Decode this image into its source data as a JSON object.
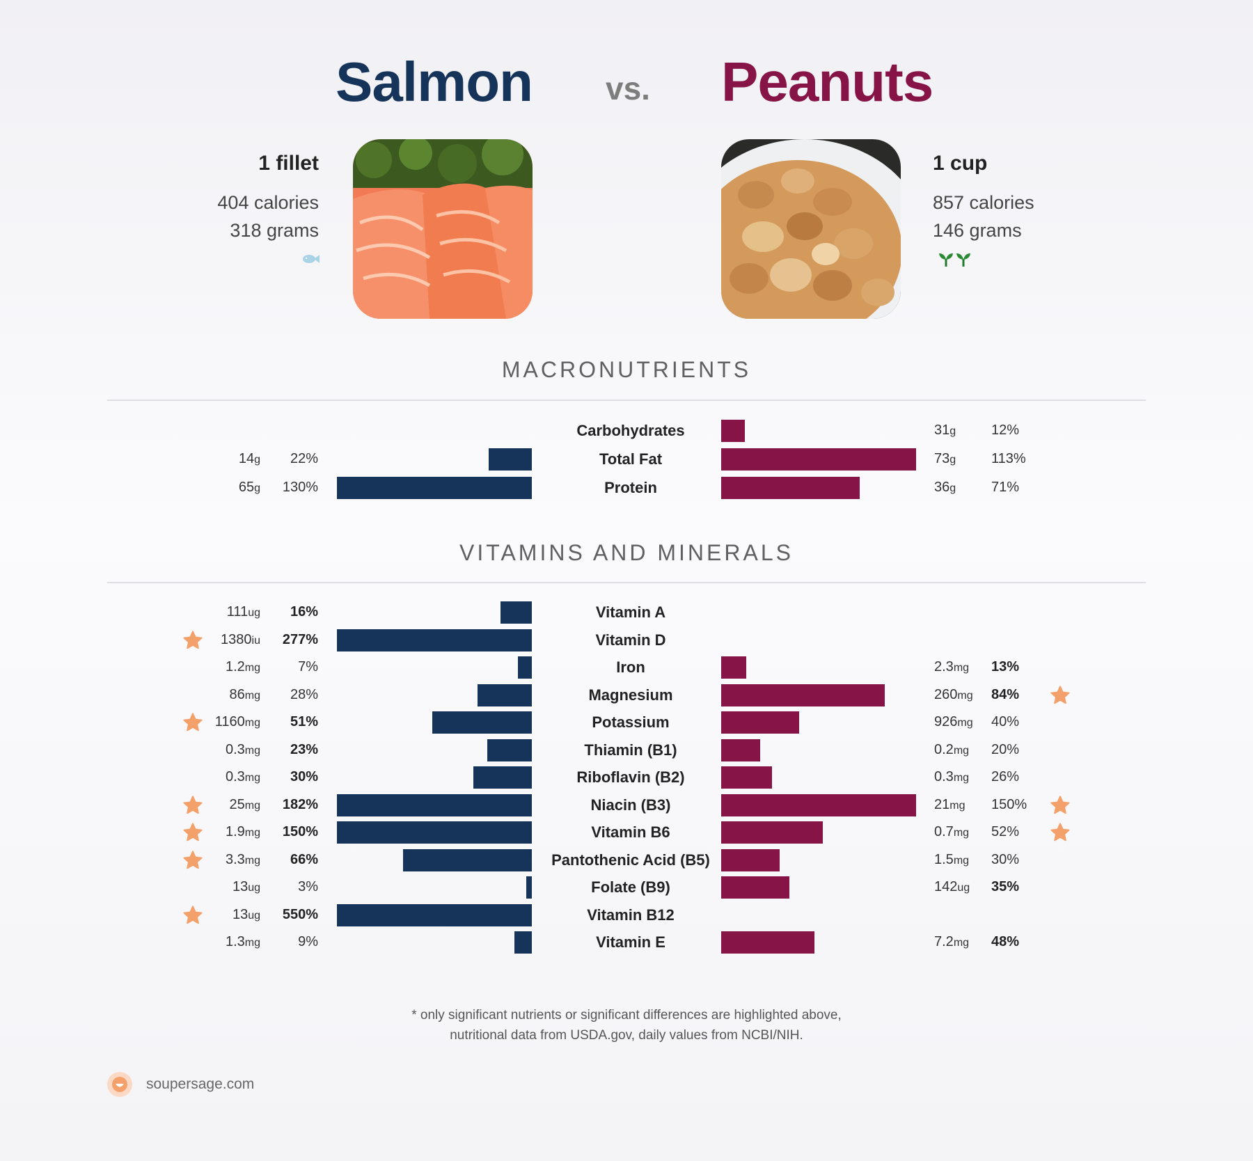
{
  "header": {
    "left_title": "Salmon",
    "vs": "vs.",
    "right_title": "Peanuts"
  },
  "left_food": {
    "serving": "1 fillet",
    "calories": "404 calories",
    "grams": "318 grams",
    "icon": "fish-icon"
  },
  "right_food": {
    "serving": "1 cup",
    "calories": "857 calories",
    "grams": "146 grams",
    "icon": "sprout-icon"
  },
  "sections": {
    "macros": "MACRONUTRIENTS",
    "vitamins": "VITAMINS AND MINERALS"
  },
  "colors": {
    "salmon": "#16345a",
    "peanuts": "#861446",
    "star": "#f4a06a"
  },
  "chart_data": [
    {
      "type": "bar",
      "title": "MACRONUTRIENTS",
      "series_colors": [
        "#16345a",
        "#861446"
      ],
      "rows": [
        {
          "name": "Carbohydrates",
          "left": null,
          "right": {
            "amount": "31",
            "unit": "g",
            "pct": 12,
            "bold": false,
            "star": false
          }
        },
        {
          "name": "Total Fat",
          "left": {
            "amount": "14",
            "unit": "g",
            "pct": 22,
            "bold": false,
            "star": false
          },
          "right": {
            "amount": "73",
            "unit": "g",
            "pct": 113,
            "bold": false,
            "star": false
          }
        },
        {
          "name": "Protein",
          "left": {
            "amount": "65",
            "unit": "g",
            "pct": 130,
            "bold": false,
            "star": false
          },
          "right": {
            "amount": "36",
            "unit": "g",
            "pct": 71,
            "bold": false,
            "star": false
          }
        }
      ]
    },
    {
      "type": "bar",
      "title": "VITAMINS AND MINERALS",
      "series_colors": [
        "#16345a",
        "#861446"
      ],
      "rows": [
        {
          "name": "Vitamin A",
          "left": {
            "amount": "111",
            "unit": "ug",
            "pct": 16,
            "bold": true,
            "star": false
          },
          "right": null
        },
        {
          "name": "Vitamin D",
          "left": {
            "amount": "1380",
            "unit": "iu",
            "pct": 277,
            "bold": true,
            "star": true
          },
          "right": null
        },
        {
          "name": "Iron",
          "left": {
            "amount": "1.2",
            "unit": "mg",
            "pct": 7,
            "bold": false,
            "star": false
          },
          "right": {
            "amount": "2.3",
            "unit": "mg",
            "pct": 13,
            "bold": true,
            "star": false
          }
        },
        {
          "name": "Magnesium",
          "left": {
            "amount": "86",
            "unit": "mg",
            "pct": 28,
            "bold": false,
            "star": false
          },
          "right": {
            "amount": "260",
            "unit": "mg",
            "pct": 84,
            "bold": true,
            "star": true
          }
        },
        {
          "name": "Potassium",
          "left": {
            "amount": "1160",
            "unit": "mg",
            "pct": 51,
            "bold": true,
            "star": true
          },
          "right": {
            "amount": "926",
            "unit": "mg",
            "pct": 40,
            "bold": false,
            "star": false
          }
        },
        {
          "name": "Thiamin (B1)",
          "left": {
            "amount": "0.3",
            "unit": "mg",
            "pct": 23,
            "bold": true,
            "star": false
          },
          "right": {
            "amount": "0.2",
            "unit": "mg",
            "pct": 20,
            "bold": false,
            "star": false
          }
        },
        {
          "name": "Riboflavin (B2)",
          "left": {
            "amount": "0.3",
            "unit": "mg",
            "pct": 30,
            "bold": true,
            "star": false
          },
          "right": {
            "amount": "0.3",
            "unit": "mg",
            "pct": 26,
            "bold": false,
            "star": false
          }
        },
        {
          "name": "Niacin (B3)",
          "left": {
            "amount": "25",
            "unit": "mg",
            "pct": 182,
            "bold": true,
            "star": true
          },
          "right": {
            "amount": "21",
            "unit": "mg",
            "pct": 150,
            "bold": false,
            "star": true
          }
        },
        {
          "name": "Vitamin B6",
          "left": {
            "amount": "1.9",
            "unit": "mg",
            "pct": 150,
            "bold": true,
            "star": true
          },
          "right": {
            "amount": "0.7",
            "unit": "mg",
            "pct": 52,
            "bold": false,
            "star": true
          }
        },
        {
          "name": "Pantothenic Acid (B5)",
          "left": {
            "amount": "3.3",
            "unit": "mg",
            "pct": 66,
            "bold": true,
            "star": true
          },
          "right": {
            "amount": "1.5",
            "unit": "mg",
            "pct": 30,
            "bold": false,
            "star": false
          }
        },
        {
          "name": "Folate (B9)",
          "left": {
            "amount": "13",
            "unit": "ug",
            "pct": 3,
            "bold": false,
            "star": false
          },
          "right": {
            "amount": "142",
            "unit": "ug",
            "pct": 35,
            "bold": true,
            "star": false
          }
        },
        {
          "name": "Vitamin B12",
          "left": {
            "amount": "13",
            "unit": "ug",
            "pct": 550,
            "bold": true,
            "star": true
          },
          "right": null
        },
        {
          "name": "Vitamin E",
          "left": {
            "amount": "1.3",
            "unit": "mg",
            "pct": 9,
            "bold": false,
            "star": false
          },
          "right": {
            "amount": "7.2",
            "unit": "mg",
            "pct": 48,
            "bold": true,
            "star": false
          }
        }
      ]
    }
  ],
  "footer": {
    "note_line1": "* only significant nutrients or significant differences are highlighted above,",
    "note_line2": "nutritional data from USDA.gov, daily values from NCBI/NIH.",
    "site": "soupersage.com"
  }
}
